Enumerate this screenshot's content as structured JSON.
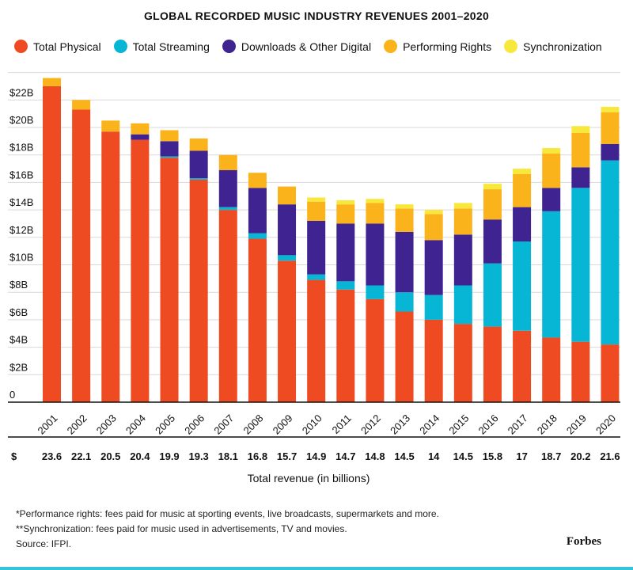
{
  "chart_data": {
    "type": "stacked-bar",
    "title": "GLOBAL RECORDED MUSIC INDUSTRY REVENUES 2001–2020",
    "xlabel": "Total revenue (in billions)",
    "ylabel": "",
    "ylim": [
      0,
      24
    ],
    "yticks": [
      0,
      2,
      4,
      6,
      8,
      10,
      12,
      14,
      16,
      18,
      20,
      22
    ],
    "ytick_labels": [
      "0",
      "$2B",
      "$4B",
      "$6B",
      "$8B",
      "$10B",
      "$12B",
      "$14B",
      "$16B",
      "$18B",
      "$20B",
      "$22B"
    ],
    "grid": true,
    "legend_position": "top",
    "categories": [
      "2001",
      "2002",
      "2003",
      "2004",
      "2005",
      "2006",
      "2007",
      "2008",
      "2009",
      "2010",
      "2011",
      "2012",
      "2013",
      "2014",
      "2015",
      "2016",
      "2017",
      "2018",
      "2019",
      "2020"
    ],
    "series": [
      {
        "name": "Total Physical",
        "color": "#ef4b23",
        "values": [
          23.0,
          21.3,
          19.7,
          19.1,
          17.8,
          16.2,
          14.0,
          11.9,
          10.3,
          8.9,
          8.2,
          7.5,
          6.6,
          6.0,
          5.7,
          5.5,
          5.2,
          4.7,
          4.4,
          4.2
        ]
      },
      {
        "name": "Total Streaming",
        "color": "#06b6d4",
        "values": [
          0.0,
          0.0,
          0.0,
          0.0,
          0.1,
          0.1,
          0.2,
          0.4,
          0.4,
          0.4,
          0.6,
          1.0,
          1.4,
          1.8,
          2.8,
          4.6,
          6.5,
          9.2,
          11.2,
          13.4
        ]
      },
      {
        "name": "Downloads & Other Digital",
        "color": "#3e2391",
        "values": [
          0.0,
          0.0,
          0.0,
          0.4,
          1.1,
          2.0,
          2.7,
          3.3,
          3.7,
          3.9,
          4.2,
          4.5,
          4.4,
          4.0,
          3.7,
          3.2,
          2.5,
          1.7,
          1.5,
          1.2
        ]
      },
      {
        "name": "Performing Rights",
        "color": "#fbb31b",
        "values": [
          0.6,
          0.7,
          0.8,
          0.8,
          0.8,
          0.9,
          1.1,
          1.1,
          1.3,
          1.4,
          1.4,
          1.5,
          1.7,
          1.9,
          1.9,
          2.2,
          2.4,
          2.5,
          2.5,
          2.3
        ]
      },
      {
        "name": "Synchronization",
        "color": "#f8e83b",
        "values": [
          0.0,
          0.0,
          0.0,
          0.0,
          0.0,
          0.0,
          0.0,
          0.0,
          0.0,
          0.3,
          0.3,
          0.3,
          0.3,
          0.3,
          0.4,
          0.4,
          0.4,
          0.4,
          0.5,
          0.4
        ]
      }
    ],
    "totals_currency": "$",
    "totals": [
      "23.6",
      "22.1",
      "20.5",
      "20.4",
      "19.9",
      "19.3",
      "18.1",
      "16.8",
      "15.7",
      "14.9",
      "14.7",
      "14.8",
      "14.5",
      "14",
      "14.5",
      "15.8",
      "17",
      "18.7",
      "20.2",
      "21.6"
    ]
  },
  "footnotes": [
    "*Performance rights: fees paid for music at sporting events, live broadcasts, supermarkets and more.",
    "**Synchronization: fees paid for music used in advertisements, TV and movies.",
    "Source: IFPI."
  ],
  "brand": "Forbes",
  "colors": {
    "accent_rule": "#36c4dd",
    "grid": "#d9d9d9",
    "axis": "#111111"
  }
}
